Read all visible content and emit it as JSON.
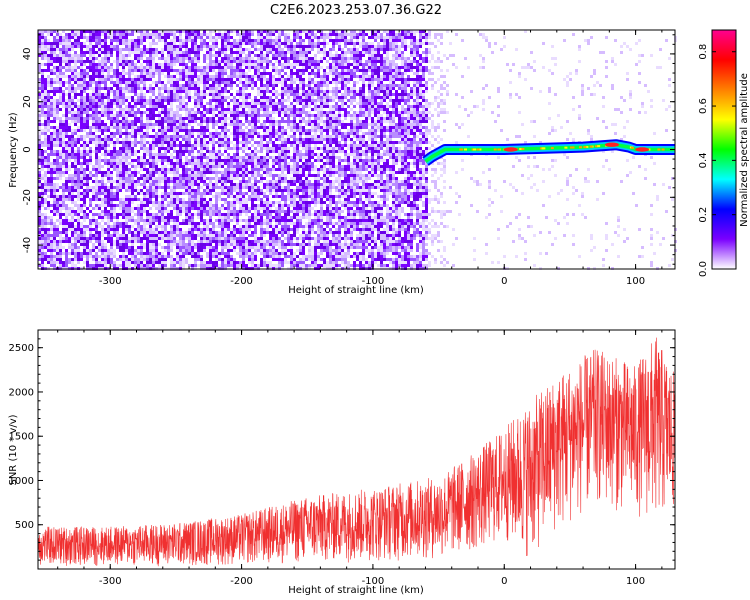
{
  "title": "C2E6.2023.253.07.36.G22",
  "chart_data": [
    {
      "type": "heatmap",
      "xlabel": "Height of straight line (km)",
      "ylabel": "Frequency (Hz)",
      "xlim": [
        -355,
        130
      ],
      "ylim": [
        -50,
        50
      ],
      "xticks": [
        -300,
        -200,
        -100,
        0,
        100
      ],
      "yticks": [
        -40,
        -20,
        0,
        20,
        40
      ],
      "colorbar": {
        "label": "Normalized spectral amplitude",
        "range": [
          0,
          0.88
        ],
        "ticks": [
          0.0,
          0.2,
          0.4,
          0.6,
          0.8
        ],
        "colormap": [
          "#ffffff",
          "#7a00ff",
          "#0000ff",
          "#00ffff",
          "#00ff00",
          "#ffff00",
          "#ff8000",
          "#ff0000",
          "#ff0090"
        ]
      },
      "features": {
        "noise_region_x": [
          -355,
          -60
        ],
        "noise_color": "#7a00ff",
        "signal_line": [
          {
            "x": -60,
            "y": -5
          },
          {
            "x": -55,
            "y": -3
          },
          {
            "x": -45,
            "y": 0
          },
          {
            "x": 0,
            "y": 0
          },
          {
            "x": 60,
            "y": 1
          },
          {
            "x": 85,
            "y": 2
          },
          {
            "x": 95,
            "y": 1
          },
          {
            "x": 100,
            "y": 0
          },
          {
            "x": 130,
            "y": 0
          }
        ],
        "peak_points": [
          {
            "x": 5,
            "y": 0,
            "amp": 0.85
          },
          {
            "x": 82,
            "y": 2,
            "amp": 0.85
          },
          {
            "x": 105,
            "y": 0,
            "amp": 0.8
          }
        ]
      }
    },
    {
      "type": "line",
      "xlabel": "Height of straight line (km)",
      "ylabel": "SNR (10 * v/v)",
      "xlim": [
        -355,
        130
      ],
      "ylim": [
        0,
        2700
      ],
      "xticks": [
        -300,
        -200,
        -100,
        0,
        100
      ],
      "yticks": [
        500,
        1000,
        1500,
        2000,
        2500
      ],
      "series": [
        {
          "color": "#f03030",
          "envelope": [
            {
              "x": -355,
              "low": 30,
              "high": 480
            },
            {
              "x": -300,
              "low": 30,
              "high": 480
            },
            {
              "x": -250,
              "low": 30,
              "high": 520
            },
            {
              "x": -200,
              "low": 40,
              "high": 620
            },
            {
              "x": -150,
              "low": 60,
              "high": 820
            },
            {
              "x": -100,
              "low": 80,
              "high": 920
            },
            {
              "x": -50,
              "low": 100,
              "high": 1050
            },
            {
              "x": -20,
              "low": 200,
              "high": 1350
            },
            {
              "x": 0,
              "low": 300,
              "high": 1600
            },
            {
              "x": 20,
              "low": 100,
              "high": 1900
            },
            {
              "x": 40,
              "low": 400,
              "high": 2200
            },
            {
              "x": 70,
              "low": 700,
              "high": 2500
            },
            {
              "x": 100,
              "low": 600,
              "high": 2300
            },
            {
              "x": 115,
              "low": 500,
              "high": 2650
            },
            {
              "x": 130,
              "low": 600,
              "high": 2200
            }
          ]
        }
      ]
    }
  ]
}
